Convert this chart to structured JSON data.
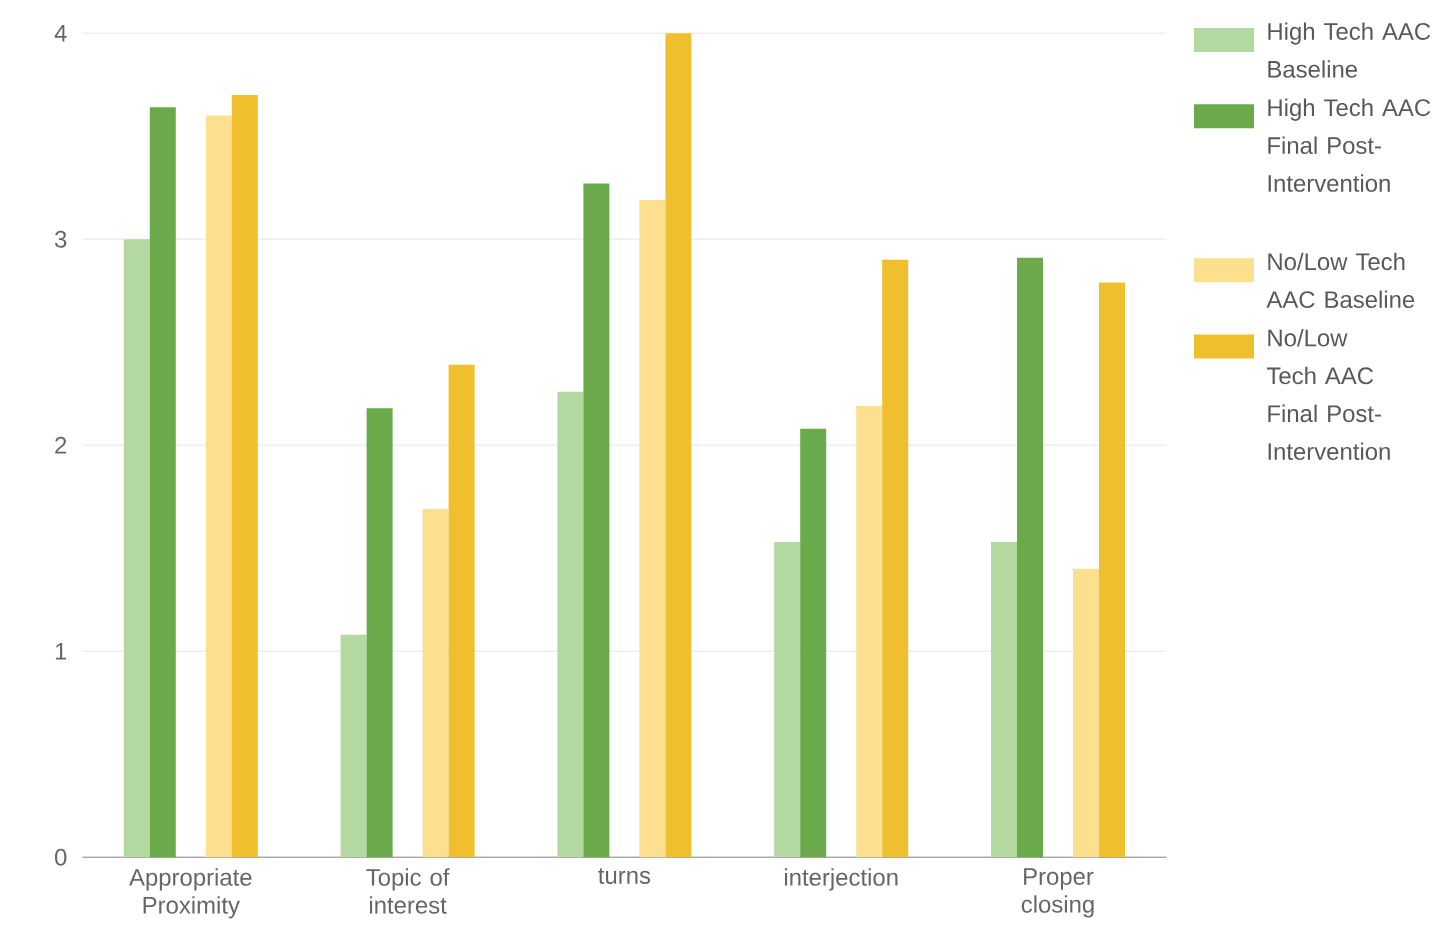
{
  "chart_data": {
    "type": "bar",
    "categories": [
      "Appropriate Proximity",
      "Topic of interest",
      "turns",
      "interjection",
      "Proper closing"
    ],
    "series": [
      {
        "name": "High Tech AAC Baseline",
        "color": "#b3d9a0",
        "values": [
          3.0,
          1.08,
          2.26,
          1.53,
          1.53
        ]
      },
      {
        "name": "High Tech AAC Final Post-Intervention",
        "color": "#6aaa4a",
        "values": [
          3.64,
          2.18,
          3.27,
          2.08,
          2.91
        ]
      },
      {
        "name": "No/Low Tech AAC Baseline",
        "color": "#fce08f",
        "values": [
          3.6,
          1.69,
          3.19,
          2.19,
          1.4
        ]
      },
      {
        "name": "No/Low Tech AAC Final Post-Intervention",
        "color": "#f0bf2e",
        "values": [
          3.7,
          2.39,
          4.0,
          2.9,
          2.79
        ]
      }
    ],
    "ylim": [
      0,
      4
    ],
    "yticks": [
      0,
      1,
      2,
      3,
      4
    ],
    "grid": "y",
    "legend": "right"
  }
}
